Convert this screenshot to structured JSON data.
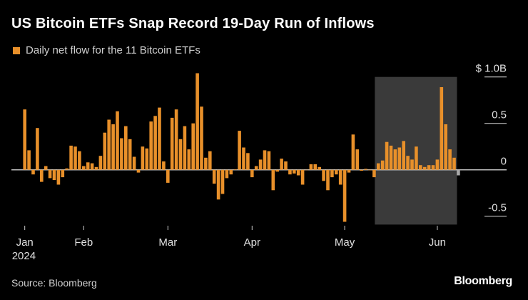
{
  "title": "US Bitcoin ETFs Snap Record 19-Day Run of Inflows",
  "legend": "Daily net flow for the 11 Bitcoin ETFs",
  "source": "Source: Bloomberg",
  "logo": "Bloomberg",
  "colors": {
    "bar": "#e8902a",
    "latest_bar": "#a8a8a8",
    "highlight": "#3a3a3a",
    "background": "#000000",
    "axis": "#bdbdbd"
  },
  "chart_data": {
    "type": "bar",
    "title": "US Bitcoin ETFs Snap Record 19-Day Run of Inflows",
    "series_label": "Daily net flow for the 11 Bitcoin ETFs",
    "unit": "$B",
    "ylim": [
      -0.6,
      1.05
    ],
    "y_ticks": [
      {
        "value": 1.0,
        "label": "$ 1.0B"
      },
      {
        "value": 0.5,
        "label": "0.5"
      },
      {
        "value": 0,
        "label": "0"
      },
      {
        "value": -0.5,
        "label": "-0.5"
      }
    ],
    "x_ticks": [
      {
        "date": "2024-01-11",
        "label": "Jan",
        "sublabel": "2024"
      },
      {
        "date": "2024-02-01",
        "label": "Feb"
      },
      {
        "date": "2024-03-01",
        "label": "Mar"
      },
      {
        "date": "2024-04-01",
        "label": "Apr"
      },
      {
        "date": "2024-05-01",
        "label": "May"
      },
      {
        "date": "2024-06-03",
        "label": "Jun"
      }
    ],
    "highlight_range": [
      "2024-05-13",
      "2024-06-07"
    ],
    "dates": [
      "2024-01-11",
      "2024-01-12",
      "2024-01-16",
      "2024-01-17",
      "2024-01-18",
      "2024-01-19",
      "2024-01-22",
      "2024-01-23",
      "2024-01-24",
      "2024-01-25",
      "2024-01-26",
      "2024-01-29",
      "2024-01-30",
      "2024-01-31",
      "2024-02-01",
      "2024-02-02",
      "2024-02-05",
      "2024-02-06",
      "2024-02-07",
      "2024-02-08",
      "2024-02-09",
      "2024-02-12",
      "2024-02-13",
      "2024-02-14",
      "2024-02-15",
      "2024-02-16",
      "2024-02-20",
      "2024-02-21",
      "2024-02-22",
      "2024-02-23",
      "2024-02-26",
      "2024-02-27",
      "2024-02-28",
      "2024-02-29",
      "2024-03-01",
      "2024-03-04",
      "2024-03-05",
      "2024-03-06",
      "2024-03-07",
      "2024-03-08",
      "2024-03-11",
      "2024-03-12",
      "2024-03-13",
      "2024-03-14",
      "2024-03-15",
      "2024-03-18",
      "2024-03-19",
      "2024-03-20",
      "2024-03-21",
      "2024-03-22",
      "2024-03-25",
      "2024-03-26",
      "2024-03-27",
      "2024-03-28",
      "2024-04-01",
      "2024-04-02",
      "2024-04-03",
      "2024-04-04",
      "2024-04-05",
      "2024-04-08",
      "2024-04-09",
      "2024-04-10",
      "2024-04-11",
      "2024-04-12",
      "2024-04-15",
      "2024-04-16",
      "2024-04-17",
      "2024-04-18",
      "2024-04-19",
      "2024-04-22",
      "2024-04-23",
      "2024-04-24",
      "2024-04-25",
      "2024-04-26",
      "2024-04-29",
      "2024-04-30",
      "2024-05-01",
      "2024-05-02",
      "2024-05-03",
      "2024-05-06",
      "2024-05-07",
      "2024-05-08",
      "2024-05-09",
      "2024-05-10",
      "2024-05-13",
      "2024-05-14",
      "2024-05-15",
      "2024-05-16",
      "2024-05-17",
      "2024-05-20",
      "2024-05-21",
      "2024-05-22",
      "2024-05-23",
      "2024-05-24",
      "2024-05-28",
      "2024-05-29",
      "2024-05-30",
      "2024-05-31",
      "2024-06-03",
      "2024-06-04",
      "2024-06-05",
      "2024-06-06",
      "2024-06-07",
      "2024-06-10"
    ],
    "values": [
      0.65,
      0.21,
      -0.05,
      0.45,
      -0.13,
      0.04,
      -0.09,
      -0.11,
      -0.16,
      -0.08,
      0.015,
      0.26,
      0.25,
      0.2,
      0.04,
      0.08,
      0.07,
      0.03,
      0.15,
      0.4,
      0.54,
      0.49,
      0.63,
      0.34,
      0.47,
      0.33,
      0.14,
      -0.03,
      0.25,
      0.23,
      0.52,
      0.58,
      0.67,
      0.09,
      -0.14,
      0.56,
      0.65,
      0.33,
      0.47,
      0.22,
      0.5,
      1.04,
      0.68,
      0.13,
      0.2,
      -0.15,
      -0.32,
      -0.26,
      -0.09,
      -0.05,
      0.005,
      0.42,
      0.24,
      0.18,
      -0.08,
      0.04,
      0.11,
      0.21,
      0.2,
      -0.22,
      -0.02,
      0.12,
      0.09,
      -0.05,
      -0.04,
      -0.06,
      -0.16,
      0,
      0.06,
      0.06,
      0.03,
      -0.12,
      -0.22,
      -0.08,
      -0.05,
      -0.16,
      -0.56,
      -0.03,
      0.38,
      0.22,
      -0.01,
      0.01,
      -0.005,
      -0.08,
      0.07,
      0.1,
      0.3,
      0.26,
      0.22,
      0.24,
      0.31,
      0.15,
      0.11,
      0.25,
      0.05,
      0.03,
      0.05,
      0.05,
      0.11,
      0.89,
      0.49,
      0.22,
      0.13,
      -0.06
    ]
  }
}
